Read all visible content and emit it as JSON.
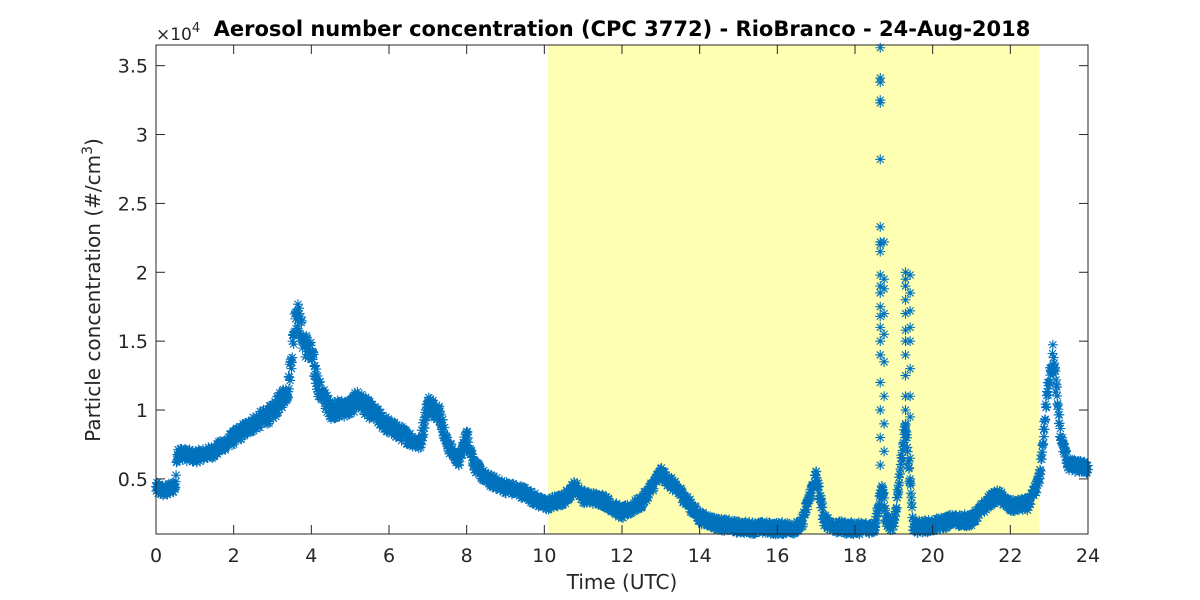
{
  "chart_data": {
    "type": "scatter",
    "title": "Aerosol number concentration (CPC 3772) - RioBranco - 24-Aug-2018",
    "xlabel": "Time (UTC)",
    "ylabel_main": "Particle concentration (#/cm",
    "ylabel_sup": "3",
    "ylabel_close": ")",
    "y_multiplier_base": "×10",
    "y_multiplier_exp": "4",
    "xlim": [
      0,
      24
    ],
    "ylim": [
      1000,
      36500
    ],
    "x_ticks": [
      0,
      2,
      4,
      6,
      8,
      10,
      12,
      14,
      16,
      18,
      20,
      22,
      24
    ],
    "x_tick_labels": [
      "0",
      "2",
      "4",
      "6",
      "8",
      "10",
      "12",
      "14",
      "16",
      "18",
      "20",
      "22",
      "24"
    ],
    "y_ticks": [
      5000,
      10000,
      15000,
      20000,
      25000,
      30000,
      35000
    ],
    "y_tick_labels": [
      "0.5",
      "1",
      "1.5",
      "2",
      "2.5",
      "3",
      "3.5"
    ],
    "marker": "asterisk",
    "grid": false,
    "shaded_region": {
      "x_start": 10.1,
      "x_end": 22.75,
      "color": "#ffffb3"
    },
    "series": [
      {
        "color": "#0072bd",
        "trend": [
          [
            0.0,
            4300
          ],
          [
            0.25,
            4100
          ],
          [
            0.5,
            4500
          ],
          [
            0.55,
            7000
          ],
          [
            0.7,
            6800
          ],
          [
            1.0,
            6600
          ],
          [
            1.5,
            7000
          ],
          [
            2.0,
            8000
          ],
          [
            2.5,
            9000
          ],
          [
            3.0,
            9800
          ],
          [
            3.4,
            11500
          ],
          [
            3.55,
            15500
          ],
          [
            3.6,
            17500
          ],
          [
            3.8,
            15000
          ],
          [
            4.0,
            14000
          ],
          [
            4.2,
            11500
          ],
          [
            4.5,
            10000
          ],
          [
            5.0,
            10200
          ],
          [
            5.2,
            10800
          ],
          [
            5.5,
            10000
          ],
          [
            6.0,
            8800
          ],
          [
            6.5,
            8000
          ],
          [
            6.8,
            7500
          ],
          [
            7.0,
            10500
          ],
          [
            7.3,
            9800
          ],
          [
            7.5,
            7500
          ],
          [
            7.8,
            6300
          ],
          [
            8.0,
            8200
          ],
          [
            8.2,
            6000
          ],
          [
            8.5,
            5000
          ],
          [
            9.0,
            4400
          ],
          [
            9.5,
            4000
          ],
          [
            10.0,
            3100
          ],
          [
            10.5,
            3500
          ],
          [
            10.8,
            4500
          ],
          [
            11.0,
            3700
          ],
          [
            11.5,
            3500
          ],
          [
            12.0,
            2500
          ],
          [
            12.5,
            3300
          ],
          [
            13.0,
            5400
          ],
          [
            13.5,
            4000
          ],
          [
            14.0,
            2200
          ],
          [
            14.5,
            1700
          ],
          [
            15.0,
            1500
          ],
          [
            16.0,
            1400
          ],
          [
            16.6,
            1500
          ],
          [
            17.0,
            5300
          ],
          [
            17.2,
            2000
          ],
          [
            17.5,
            1500
          ],
          [
            18.0,
            1400
          ],
          [
            18.5,
            1500
          ],
          [
            18.7,
            4500
          ],
          [
            18.8,
            2000
          ],
          [
            19.0,
            1500
          ],
          [
            19.3,
            9000
          ],
          [
            19.5,
            1500
          ],
          [
            20.0,
            1600
          ],
          [
            20.5,
            2000
          ],
          [
            21.0,
            2000
          ],
          [
            21.5,
            3500
          ],
          [
            21.7,
            3800
          ],
          [
            22.0,
            3000
          ],
          [
            22.5,
            3200
          ],
          [
            22.75,
            5000
          ],
          [
            23.0,
            12500
          ],
          [
            23.1,
            14000
          ],
          [
            23.3,
            8000
          ],
          [
            23.5,
            6000
          ],
          [
            24.0,
            5800
          ]
        ],
        "spikes": [
          {
            "x": 18.65,
            "values": [
              36300,
              34100,
              33800,
              32500,
              32300,
              28200,
              23300,
              22200,
              22000,
              21500,
              19800,
              19000,
              18500,
              17500,
              16800,
              16000,
              15000,
              14000,
              12000,
              10000,
              8000,
              6000
            ]
          },
          {
            "x": 18.75,
            "values": [
              22200,
              19500,
              18800,
              17000,
              15500,
              13500,
              11000,
              9000,
              7000
            ]
          },
          {
            "x": 19.3,
            "values": [
              20000,
              19500,
              19000,
              18000,
              17000,
              15800,
              15000,
              14000,
              12500,
              11000,
              10000,
              9000,
              8000
            ]
          },
          {
            "x": 19.42,
            "values": [
              19800,
              18500,
              17200,
              16000,
              15000,
              13000,
              11000,
              9500,
              6500,
              5000
            ]
          }
        ]
      }
    ]
  }
}
